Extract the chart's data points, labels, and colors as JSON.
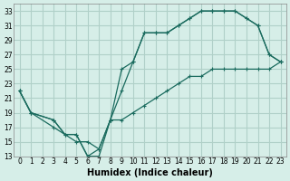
{
  "xlabel": "Humidex (Indice chaleur)",
  "ylabel": "",
  "background_color": "#d6eee8",
  "grid_color": "#b0d0c8",
  "line_color": "#1a6b5e",
  "xlim": [
    -0.5,
    23.5
  ],
  "ylim": [
    13,
    34
  ],
  "xticks": [
    0,
    1,
    2,
    3,
    4,
    5,
    6,
    7,
    8,
    9,
    10,
    11,
    12,
    13,
    14,
    15,
    16,
    17,
    18,
    19,
    20,
    21,
    22,
    23
  ],
  "yticks": [
    13,
    15,
    17,
    19,
    21,
    23,
    25,
    27,
    29,
    31,
    33
  ],
  "line1_x": [
    0,
    1,
    3,
    4,
    5,
    6,
    7,
    8,
    9,
    10,
    11,
    12,
    13,
    14,
    15,
    16,
    17,
    18,
    19,
    20,
    21,
    22,
    23
  ],
  "line1_y": [
    22,
    19,
    18,
    16,
    16,
    13,
    13,
    18,
    22,
    26,
    30,
    30,
    30,
    31,
    32,
    33,
    33,
    33,
    33,
    32,
    31,
    27,
    26
  ],
  "line2_x": [
    0,
    1,
    3,
    4,
    5,
    6,
    7,
    8,
    9,
    10,
    11,
    12,
    13,
    14,
    15,
    16,
    17,
    18,
    19,
    20,
    21,
    22,
    23
  ],
  "line2_y": [
    22,
    19,
    18,
    16,
    16,
    13,
    14,
    18,
    25,
    26,
    30,
    30,
    30,
    31,
    32,
    33,
    33,
    33,
    33,
    32,
    31,
    27,
    26
  ],
  "line3_x": [
    0,
    1,
    3,
    5,
    6,
    7,
    8,
    9,
    10,
    11,
    12,
    13,
    14,
    15,
    16,
    17,
    18,
    19,
    20,
    21,
    22,
    23
  ],
  "line3_y": [
    22,
    19,
    17,
    15,
    15,
    14,
    18,
    18,
    19,
    20,
    21,
    22,
    23,
    24,
    24,
    25,
    25,
    25,
    25,
    25,
    25,
    26
  ]
}
